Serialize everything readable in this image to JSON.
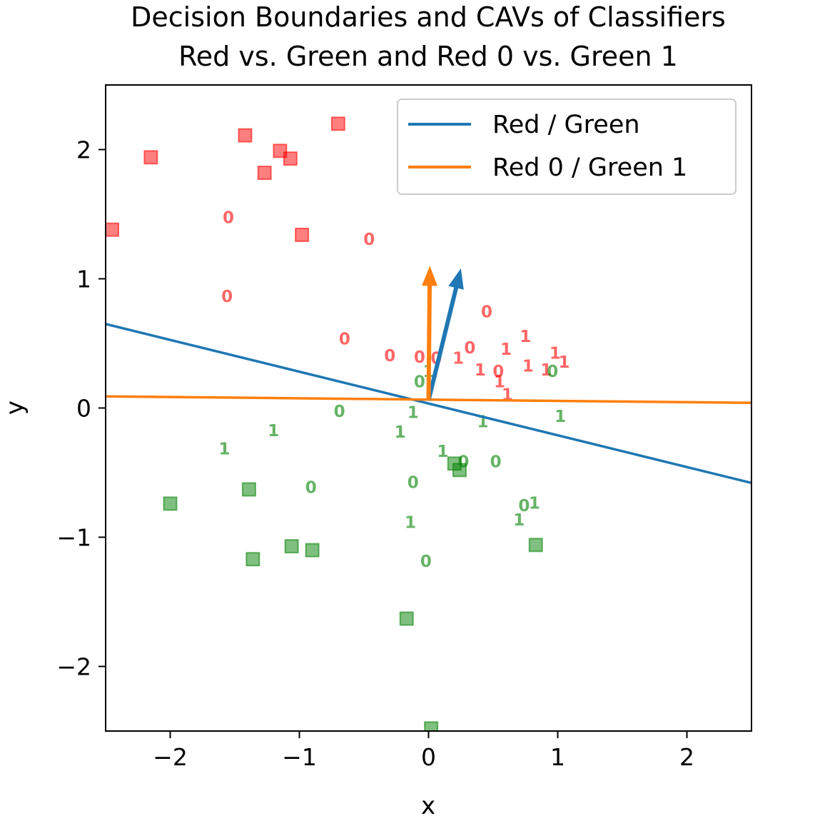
{
  "chart_data": {
    "type": "scatter",
    "title": "Decision Boundaries and CAVs of Classifiers\nRed vs. Green and Red 0 vs. Green 1",
    "xlabel": "x",
    "ylabel": "y",
    "xlim": [
      -2.5,
      2.5
    ],
    "ylim": [
      -2.5,
      2.5
    ],
    "xticks": [
      {
        "v": -2,
        "label": "−2"
      },
      {
        "v": -1,
        "label": "−1"
      },
      {
        "v": 0,
        "label": "0"
      },
      {
        "v": 1,
        "label": "1"
      },
      {
        "v": 2,
        "label": "2"
      }
    ],
    "yticks": [
      {
        "v": -2,
        "label": "−2"
      },
      {
        "v": -1,
        "label": "−1"
      },
      {
        "v": 0,
        "label": "0"
      },
      {
        "v": 1,
        "label": "1"
      },
      {
        "v": 2,
        "label": "2"
      }
    ],
    "grid": false,
    "legend_position": "top-right",
    "colors": {
      "red": "#ff0000",
      "green": "#008000",
      "blue": "#1f77b4",
      "orange": "#ff7f0e"
    },
    "lines": [
      {
        "name": "Red / Green",
        "color": "#1f77b4",
        "x": [
          -2.5,
          2.5
        ],
        "y": [
          0.65,
          -0.58
        ]
      },
      {
        "name": "Red 0 / Green 1",
        "color": "#ff7f0e",
        "x": [
          -2.5,
          2.5
        ],
        "y": [
          0.09,
          0.04
        ]
      }
    ],
    "arrows": [
      {
        "name": "Red / Green",
        "color": "#1f77b4",
        "from": [
          0.0,
          0.06
        ],
        "to": [
          0.25,
          1.08
        ]
      },
      {
        "name": "Red 0 / Green 1",
        "color": "#ff7f0e",
        "from": [
          0.0,
          0.06
        ],
        "to": [
          0.01,
          1.1
        ]
      }
    ],
    "red_squares": [
      [
        -2.45,
        1.38
      ],
      [
        -2.15,
        1.94
      ],
      [
        -1.42,
        2.11
      ],
      [
        -1.27,
        1.82
      ],
      [
        -1.15,
        1.99
      ],
      [
        -1.07,
        1.93
      ],
      [
        -0.98,
        1.34
      ],
      [
        -0.7,
        2.2
      ]
    ],
    "green_squares": [
      [
        -2.0,
        -0.74
      ],
      [
        -1.39,
        -0.63
      ],
      [
        -1.36,
        -1.17
      ],
      [
        -1.06,
        -1.07
      ],
      [
        -0.9,
        -1.1
      ],
      [
        -0.17,
        -1.63
      ],
      [
        0.02,
        -2.48
      ],
      [
        0.2,
        -0.43
      ],
      [
        0.24,
        -0.48
      ],
      [
        0.83,
        -1.06
      ]
    ],
    "red_digits": [
      {
        "t": "0",
        "x": -1.55,
        "y": 1.47
      },
      {
        "t": "0",
        "x": -0.46,
        "y": 1.3
      },
      {
        "t": "0",
        "x": -1.56,
        "y": 0.86
      },
      {
        "t": "0",
        "x": -0.65,
        "y": 0.53
      },
      {
        "t": "0",
        "x": -0.3,
        "y": 0.4
      },
      {
        "t": "0",
        "x": -0.07,
        "y": 0.39
      },
      {
        "t": "0",
        "x": 0.06,
        "y": 0.38
      },
      {
        "t": "1",
        "x": 0.23,
        "y": 0.38
      },
      {
        "t": "0",
        "x": 0.32,
        "y": 0.46
      },
      {
        "t": "0",
        "x": 0.45,
        "y": 0.74
      },
      {
        "t": "1",
        "x": 0.4,
        "y": 0.29
      },
      {
        "t": "0",
        "x": 0.54,
        "y": 0.28
      },
      {
        "t": "1",
        "x": 0.6,
        "y": 0.45
      },
      {
        "t": "1",
        "x": 0.55,
        "y": 0.2
      },
      {
        "t": "1",
        "x": 0.61,
        "y": 0.1
      },
      {
        "t": "1",
        "x": 0.75,
        "y": 0.55
      },
      {
        "t": "1",
        "x": 0.77,
        "y": 0.32
      },
      {
        "t": "1",
        "x": 0.91,
        "y": 0.29
      },
      {
        "t": "1",
        "x": 0.98,
        "y": 0.42
      },
      {
        "t": "1",
        "x": 1.05,
        "y": 0.35
      }
    ],
    "green_digits": [
      {
        "t": "0",
        "x": -0.07,
        "y": 0.2
      },
      {
        "t": "1",
        "x": 0.0,
        "y": 0.28
      },
      {
        "t": "0",
        "x": -0.69,
        "y": -0.03
      },
      {
        "t": "1",
        "x": -0.12,
        "y": -0.04
      },
      {
        "t": "1",
        "x": -1.2,
        "y": -0.18
      },
      {
        "t": "1",
        "x": -0.22,
        "y": -0.19
      },
      {
        "t": "1",
        "x": 0.42,
        "y": -0.11
      },
      {
        "t": "1",
        "x": 1.02,
        "y": -0.07
      },
      {
        "t": "1",
        "x": -1.58,
        "y": -0.32
      },
      {
        "t": "1",
        "x": 0.11,
        "y": -0.34
      },
      {
        "t": "0",
        "x": 0.27,
        "y": -0.42
      },
      {
        "t": "0",
        "x": 0.52,
        "y": -0.42
      },
      {
        "t": "0",
        "x": -0.12,
        "y": -0.58
      },
      {
        "t": "0",
        "x": -0.91,
        "y": -0.62
      },
      {
        "t": "1",
        "x": -0.14,
        "y": -0.89
      },
      {
        "t": "0",
        "x": 0.74,
        "y": -0.76
      },
      {
        "t": "1",
        "x": 0.82,
        "y": -0.74
      },
      {
        "t": "1",
        "x": 0.7,
        "y": -0.87
      },
      {
        "t": "0",
        "x": -0.02,
        "y": -1.19
      },
      {
        "t": "0",
        "x": 0.96,
        "y": 0.28
      }
    ]
  }
}
